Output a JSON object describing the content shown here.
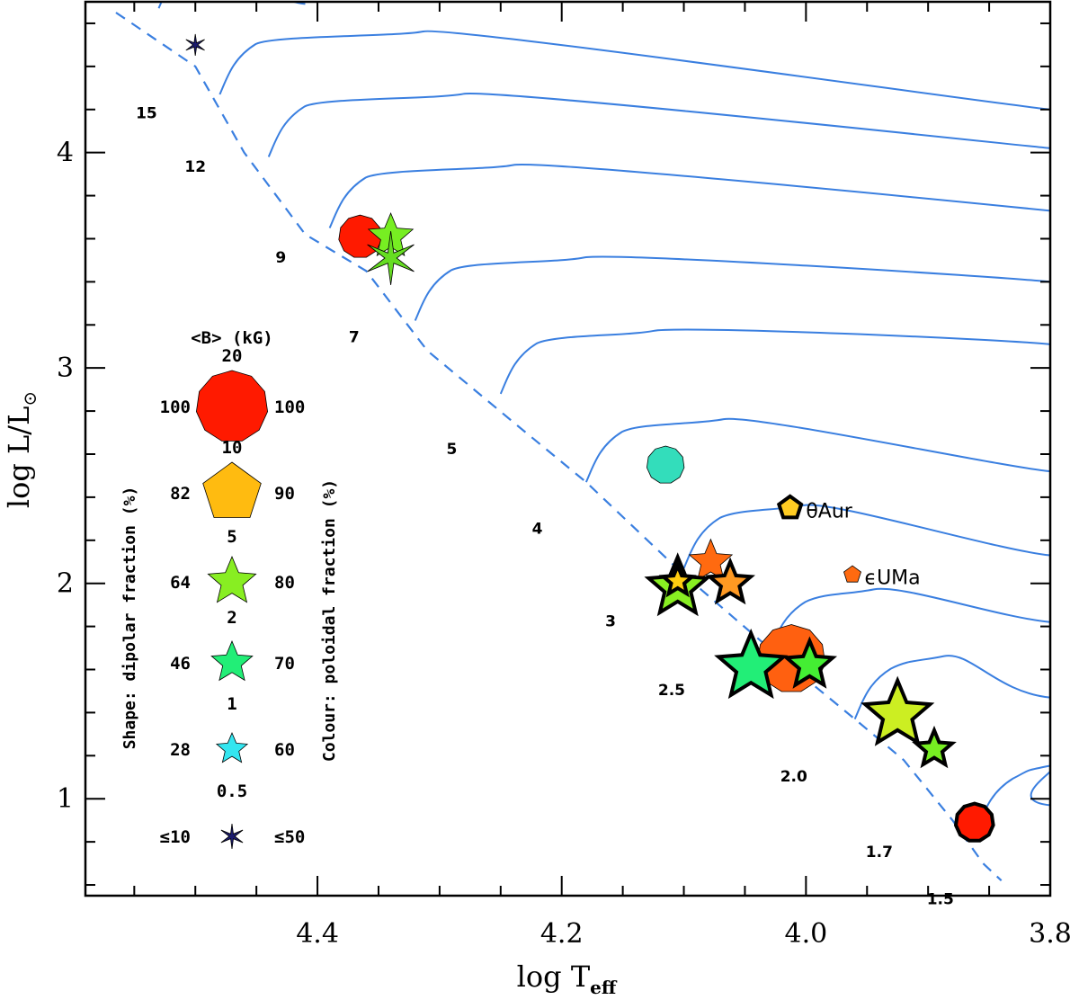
{
  "chart_data": {
    "type": "scatter",
    "xlabel": "log T",
    "xlabel_sub": "eff",
    "ylabel": "log L/L",
    "ylabel_sun": "⊙",
    "xlim": [
      4.59,
      3.8
    ],
    "ylim": [
      0.55,
      4.7
    ],
    "x_ticks": [
      {
        "value": 4.4,
        "label": "4.4"
      },
      {
        "value": 4.2,
        "label": "4.2"
      },
      {
        "value": 4.0,
        "label": "4.0"
      },
      {
        "value": 3.8,
        "label": "3.8"
      }
    ],
    "y_ticks": [
      {
        "value": 1,
        "label": "1"
      },
      {
        "value": 2,
        "label": "2"
      },
      {
        "value": 3,
        "label": "3"
      },
      {
        "value": 4,
        "label": "4"
      }
    ],
    "zams_colour": "#3a7fe0",
    "zams": [
      [
        4.565,
        4.65
      ],
      [
        4.5,
        4.4
      ],
      [
        4.46,
        4.0
      ],
      [
        4.41,
        3.62
      ],
      [
        4.36,
        3.45
      ],
      [
        4.31,
        3.08
      ],
      [
        4.24,
        2.75
      ],
      [
        4.18,
        2.47
      ],
      [
        4.1,
        2.04
      ],
      [
        4.02,
        1.65
      ],
      [
        3.96,
        1.37
      ],
      [
        3.92,
        1.18
      ],
      [
        3.88,
        0.9
      ],
      [
        3.855,
        0.7
      ],
      [
        3.84,
        0.62
      ]
    ],
    "tracks": [
      {
        "mass": "15",
        "start": [
          4.53,
          4.67
        ],
        "end": [
          4.41,
          4.69
        ]
      },
      {
        "mass": "12",
        "start": [
          4.48,
          4.27
        ],
        "end": [
          3.8,
          4.2
        ]
      },
      {
        "mass": "9",
        "start": [
          4.44,
          3.98
        ],
        "end": [
          3.8,
          4.02
        ]
      },
      {
        "mass": "7",
        "start": [
          4.39,
          3.65
        ],
        "end": [
          3.8,
          3.73
        ]
      },
      {
        "mass": "5",
        "start": [
          4.32,
          3.22
        ],
        "end": [
          3.8,
          3.4
        ]
      },
      {
        "mass": "4",
        "start": [
          4.25,
          2.88
        ],
        "end": [
          3.8,
          3.11
        ]
      },
      {
        "mass": "3",
        "start": [
          4.18,
          2.47
        ],
        "end": [
          3.8,
          2.52
        ]
      },
      {
        "mass": "2.5",
        "start": [
          4.1,
          2.07
        ],
        "end": [
          3.8,
          2.13
        ]
      },
      {
        "mass": "2.0",
        "start": [
          4.03,
          1.68
        ],
        "end": [
          3.8,
          1.82
        ]
      },
      {
        "mass": "1.7",
        "start": [
          3.96,
          1.37
        ],
        "end": [
          3.8,
          1.47
        ]
      },
      {
        "mass": "1.5",
        "start": [
          3.86,
          0.86
        ],
        "end": [
          3.8,
          0.97
        ]
      }
    ],
    "mass_labels": [
      {
        "text": "15",
        "x": 4.54,
        "y": 4.16
      },
      {
        "text": "12",
        "x": 4.5,
        "y": 3.91
      },
      {
        "text": "9",
        "x": 4.43,
        "y": 3.49
      },
      {
        "text": "7",
        "x": 4.37,
        "y": 3.12
      },
      {
        "text": "5",
        "x": 4.29,
        "y": 2.6
      },
      {
        "text": "4",
        "x": 4.22,
        "y": 2.23
      },
      {
        "text": "3",
        "x": 4.16,
        "y": 1.8
      },
      {
        "text": "2.5",
        "x": 4.11,
        "y": 1.48
      },
      {
        "text": "2.0",
        "x": 4.01,
        "y": 1.08
      },
      {
        "text": "1.7",
        "x": 3.94,
        "y": 0.73
      },
      {
        "text": "1.5",
        "x": 3.89,
        "y": 0.51
      }
    ],
    "stars": [
      {
        "x": 4.5,
        "y": 4.5,
        "shape": "star6",
        "color": "#1a1a6e",
        "size": 12,
        "outline": false
      },
      {
        "x": 4.365,
        "y": 3.61,
        "shape": "circle",
        "color": "#ff1a00",
        "size": 24,
        "outline": false
      },
      {
        "x": 4.34,
        "y": 3.61,
        "shape": "star5",
        "color": "#77ee22",
        "size": 26,
        "outline": false
      },
      {
        "x": 4.34,
        "y": 3.51,
        "shape": "star6",
        "color": "#66dd22",
        "size": 30,
        "outline": false
      },
      {
        "x": 4.115,
        "y": 2.55,
        "shape": "circle",
        "color": "#33ddbb",
        "size": 21,
        "outline": false
      },
      {
        "x": 4.078,
        "y": 2.1,
        "shape": "star5",
        "color": "#ff6a10",
        "size": 25,
        "outline": false
      },
      {
        "x": 4.105,
        "y": 1.98,
        "shape": "star5",
        "color": "#88ee22",
        "size": 34,
        "outline": true
      },
      {
        "x": 4.105,
        "y": 2.01,
        "shape": "star5",
        "color": "#ffcc10",
        "size": 17,
        "outline": true
      },
      {
        "x": 4.062,
        "y": 2.0,
        "shape": "star5",
        "color": "#ff9922",
        "size": 24,
        "outline": true
      },
      {
        "x": 4.012,
        "y": 1.65,
        "shape": "circle",
        "color": "#ff6010",
        "size": 38,
        "outline": false
      },
      {
        "x": 4.045,
        "y": 1.61,
        "shape": "star5",
        "color": "#22ee77",
        "size": 38,
        "outline": true
      },
      {
        "x": 3.997,
        "y": 1.62,
        "shape": "star5",
        "color": "#44ee33",
        "size": 27,
        "outline": true
      },
      {
        "x": 3.925,
        "y": 1.39,
        "shape": "star5",
        "color": "#ccee22",
        "size": 38,
        "outline": true
      },
      {
        "x": 3.895,
        "y": 1.23,
        "shape": "star5",
        "color": "#77ee22",
        "size": 21,
        "outline": true
      },
      {
        "x": 3.862,
        "y": 0.89,
        "shape": "circle",
        "color": "#ff1a00",
        "size": 21,
        "outline": true
      },
      {
        "x": 4.013,
        "y": 2.35,
        "shape": "pentagon",
        "color": "#ffcc22",
        "size": 13,
        "outline": true
      },
      {
        "x": 3.962,
        "y": 2.04,
        "shape": "pentagon",
        "color": "#ff6a10",
        "size": 10,
        "outline": false
      }
    ],
    "star_labels": [
      {
        "text": "θAur",
        "x": 4.0,
        "y": 2.34
      },
      {
        "text": "ϵUMa",
        "x": 3.952,
        "y": 2.03
      }
    ],
    "legend": {
      "title": "<B> (kG)",
      "left_axis_label": "Shape: dipolar fraction (%)",
      "right_axis_label": "Colour: poloidal fraction (%)",
      "entries": [
        {
          "field": "20",
          "dipolar": "100",
          "poloidal": "100",
          "shape": "circle",
          "color": "#ff1a00",
          "size": 40
        },
        {
          "field": "10",
          "dipolar": "82",
          "poloidal": "90",
          "shape": "pentagon",
          "color": "#ffbb10",
          "size": 34
        },
        {
          "field": "5",
          "dipolar": "64",
          "poloidal": "80",
          "shape": "star5",
          "color": "#88ee22",
          "size": 28
        },
        {
          "field": "2",
          "dipolar": "46",
          "poloidal": "70",
          "shape": "star5",
          "color": "#22ee77",
          "size": 24
        },
        {
          "field": "1",
          "dipolar": "28",
          "poloidal": "60",
          "shape": "star5",
          "color": "#33e6f0",
          "size": 18
        },
        {
          "field": "0.5",
          "dipolar": "≤10",
          "poloidal": "≤50",
          "shape": "star6",
          "color": "#1a1a6e",
          "size": 14
        }
      ]
    }
  }
}
